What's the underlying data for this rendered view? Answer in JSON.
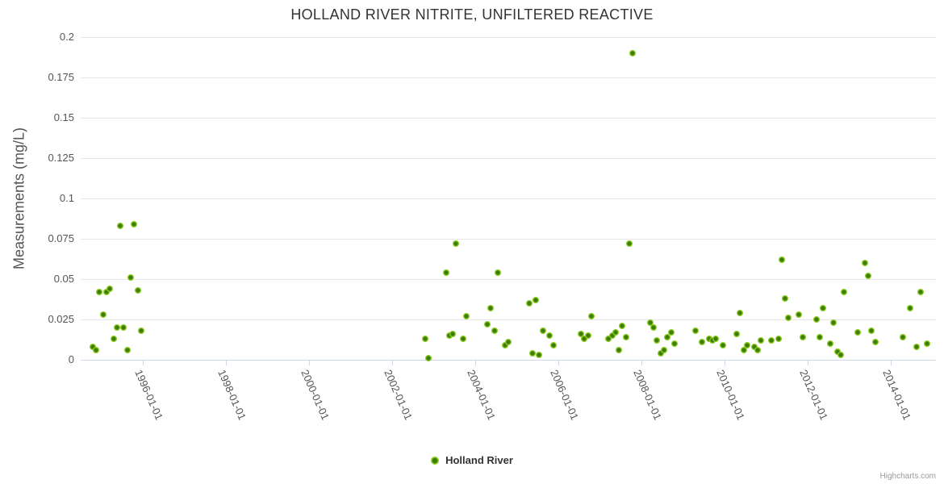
{
  "chart": {
    "title": "HOLLAND RIVER NITRITE, UNFILTERED REACTIVE",
    "credits": "Highcharts.com"
  },
  "chart_data": {
    "type": "scatter",
    "title": "HOLLAND RIVER NITRITE, UNFILTERED REACTIVE",
    "xlabel": "",
    "ylabel": "Measurements (mg/L)",
    "ylim": [
      0,
      0.2
    ],
    "xlim": [
      "1994-07-01",
      "2015-02-01"
    ],
    "grid": true,
    "legend_position": "bottom-center",
    "y_ticks": [
      {
        "value": 0,
        "label": "0"
      },
      {
        "value": 0.025,
        "label": "0.025"
      },
      {
        "value": 0.05,
        "label": "0.05"
      },
      {
        "value": 0.075,
        "label": "0.075"
      },
      {
        "value": 0.1,
        "label": "0.1"
      },
      {
        "value": 0.125,
        "label": "0.125"
      },
      {
        "value": 0.15,
        "label": "0.15"
      },
      {
        "value": 0.175,
        "label": "0.175"
      },
      {
        "value": 0.2,
        "label": "0.2"
      }
    ],
    "x_ticks": [
      "1996-01-01",
      "1998-01-01",
      "2000-01-01",
      "2002-01-01",
      "2004-01-01",
      "2006-01-01",
      "2008-01-01",
      "2010-01-01",
      "2012-01-01",
      "2014-01-01"
    ],
    "series": [
      {
        "name": "Holland River",
        "marker_color_outer": "#8bc921",
        "marker_color_inner": "#3e7d07",
        "points": [
          {
            "date": "1994-10-15",
            "value": 0.008
          },
          {
            "date": "1994-11-15",
            "value": 0.006
          },
          {
            "date": "1994-12-15",
            "value": 0.042
          },
          {
            "date": "1995-01-15",
            "value": 0.028
          },
          {
            "date": "1995-02-15",
            "value": 0.042
          },
          {
            "date": "1995-03-15",
            "value": 0.044
          },
          {
            "date": "1995-04-15",
            "value": 0.013
          },
          {
            "date": "1995-05-15",
            "value": 0.02
          },
          {
            "date": "1995-06-15",
            "value": 0.083
          },
          {
            "date": "1995-07-15",
            "value": 0.02
          },
          {
            "date": "1995-08-15",
            "value": 0.006
          },
          {
            "date": "1995-09-15",
            "value": 0.051
          },
          {
            "date": "1995-10-15",
            "value": 0.084
          },
          {
            "date": "1995-11-15",
            "value": 0.043
          },
          {
            "date": "1995-12-15",
            "value": 0.018
          },
          {
            "date": "2002-10-15",
            "value": 0.013
          },
          {
            "date": "2002-11-15",
            "value": 0.001
          },
          {
            "date": "2003-04-15",
            "value": 0.054
          },
          {
            "date": "2003-05-15",
            "value": 0.015
          },
          {
            "date": "2003-06-15",
            "value": 0.016
          },
          {
            "date": "2003-07-15",
            "value": 0.072
          },
          {
            "date": "2003-09-15",
            "value": 0.013
          },
          {
            "date": "2003-10-15",
            "value": 0.027
          },
          {
            "date": "2004-04-15",
            "value": 0.022
          },
          {
            "date": "2004-05-15",
            "value": 0.032
          },
          {
            "date": "2004-06-15",
            "value": 0.018
          },
          {
            "date": "2004-07-15",
            "value": 0.054
          },
          {
            "date": "2004-09-15",
            "value": 0.009
          },
          {
            "date": "2004-10-15",
            "value": 0.011
          },
          {
            "date": "2005-04-15",
            "value": 0.035
          },
          {
            "date": "2005-05-15",
            "value": 0.004
          },
          {
            "date": "2005-06-15",
            "value": 0.037
          },
          {
            "date": "2005-07-15",
            "value": 0.003
          },
          {
            "date": "2005-08-15",
            "value": 0.018
          },
          {
            "date": "2005-10-15",
            "value": 0.015
          },
          {
            "date": "2005-11-15",
            "value": 0.009
          },
          {
            "date": "2006-07-15",
            "value": 0.016
          },
          {
            "date": "2006-08-15",
            "value": 0.013
          },
          {
            "date": "2006-09-15",
            "value": 0.015
          },
          {
            "date": "2006-10-15",
            "value": 0.027
          },
          {
            "date": "2007-03-15",
            "value": 0.013
          },
          {
            "date": "2007-04-15",
            "value": 0.015
          },
          {
            "date": "2007-05-15",
            "value": 0.017
          },
          {
            "date": "2007-06-15",
            "value": 0.006
          },
          {
            "date": "2007-07-15",
            "value": 0.021
          },
          {
            "date": "2007-08-15",
            "value": 0.014
          },
          {
            "date": "2007-09-15",
            "value": 0.072
          },
          {
            "date": "2007-10-15",
            "value": 0.19
          },
          {
            "date": "2008-03-15",
            "value": 0.023
          },
          {
            "date": "2008-04-15",
            "value": 0.02
          },
          {
            "date": "2008-05-15",
            "value": 0.012
          },
          {
            "date": "2008-06-15",
            "value": 0.004
          },
          {
            "date": "2008-07-15",
            "value": 0.006
          },
          {
            "date": "2008-08-15",
            "value": 0.014
          },
          {
            "date": "2008-09-15",
            "value": 0.017
          },
          {
            "date": "2008-10-15",
            "value": 0.01
          },
          {
            "date": "2009-04-15",
            "value": 0.018
          },
          {
            "date": "2009-06-15",
            "value": 0.011
          },
          {
            "date": "2009-08-15",
            "value": 0.013
          },
          {
            "date": "2009-09-15",
            "value": 0.012
          },
          {
            "date": "2009-10-15",
            "value": 0.013
          },
          {
            "date": "2009-12-15",
            "value": 0.009
          },
          {
            "date": "2010-04-15",
            "value": 0.016
          },
          {
            "date": "2010-05-15",
            "value": 0.029
          },
          {
            "date": "2010-06-15",
            "value": 0.006
          },
          {
            "date": "2010-07-15",
            "value": 0.009
          },
          {
            "date": "2010-09-15",
            "value": 0.008
          },
          {
            "date": "2010-10-15",
            "value": 0.006
          },
          {
            "date": "2010-11-15",
            "value": 0.012
          },
          {
            "date": "2011-02-15",
            "value": 0.012
          },
          {
            "date": "2011-04-15",
            "value": 0.013
          },
          {
            "date": "2011-05-15",
            "value": 0.062
          },
          {
            "date": "2011-06-15",
            "value": 0.038
          },
          {
            "date": "2011-07-15",
            "value": 0.026
          },
          {
            "date": "2011-10-15",
            "value": 0.028
          },
          {
            "date": "2011-11-15",
            "value": 0.014
          },
          {
            "date": "2012-03-15",
            "value": 0.025
          },
          {
            "date": "2012-04-15",
            "value": 0.014
          },
          {
            "date": "2012-05-15",
            "value": 0.032
          },
          {
            "date": "2012-07-15",
            "value": 0.01
          },
          {
            "date": "2012-08-15",
            "value": 0.023
          },
          {
            "date": "2012-09-15",
            "value": 0.005
          },
          {
            "date": "2012-10-15",
            "value": 0.003
          },
          {
            "date": "2012-11-15",
            "value": 0.042
          },
          {
            "date": "2013-03-15",
            "value": 0.017
          },
          {
            "date": "2013-05-15",
            "value": 0.06
          },
          {
            "date": "2013-06-15",
            "value": 0.052
          },
          {
            "date": "2013-07-15",
            "value": 0.018
          },
          {
            "date": "2013-08-15",
            "value": 0.011
          },
          {
            "date": "2014-04-15",
            "value": 0.014
          },
          {
            "date": "2014-06-15",
            "value": 0.032
          },
          {
            "date": "2014-08-15",
            "value": 0.008
          },
          {
            "date": "2014-09-15",
            "value": 0.042
          },
          {
            "date": "2014-11-15",
            "value": 0.01
          }
        ]
      }
    ]
  }
}
